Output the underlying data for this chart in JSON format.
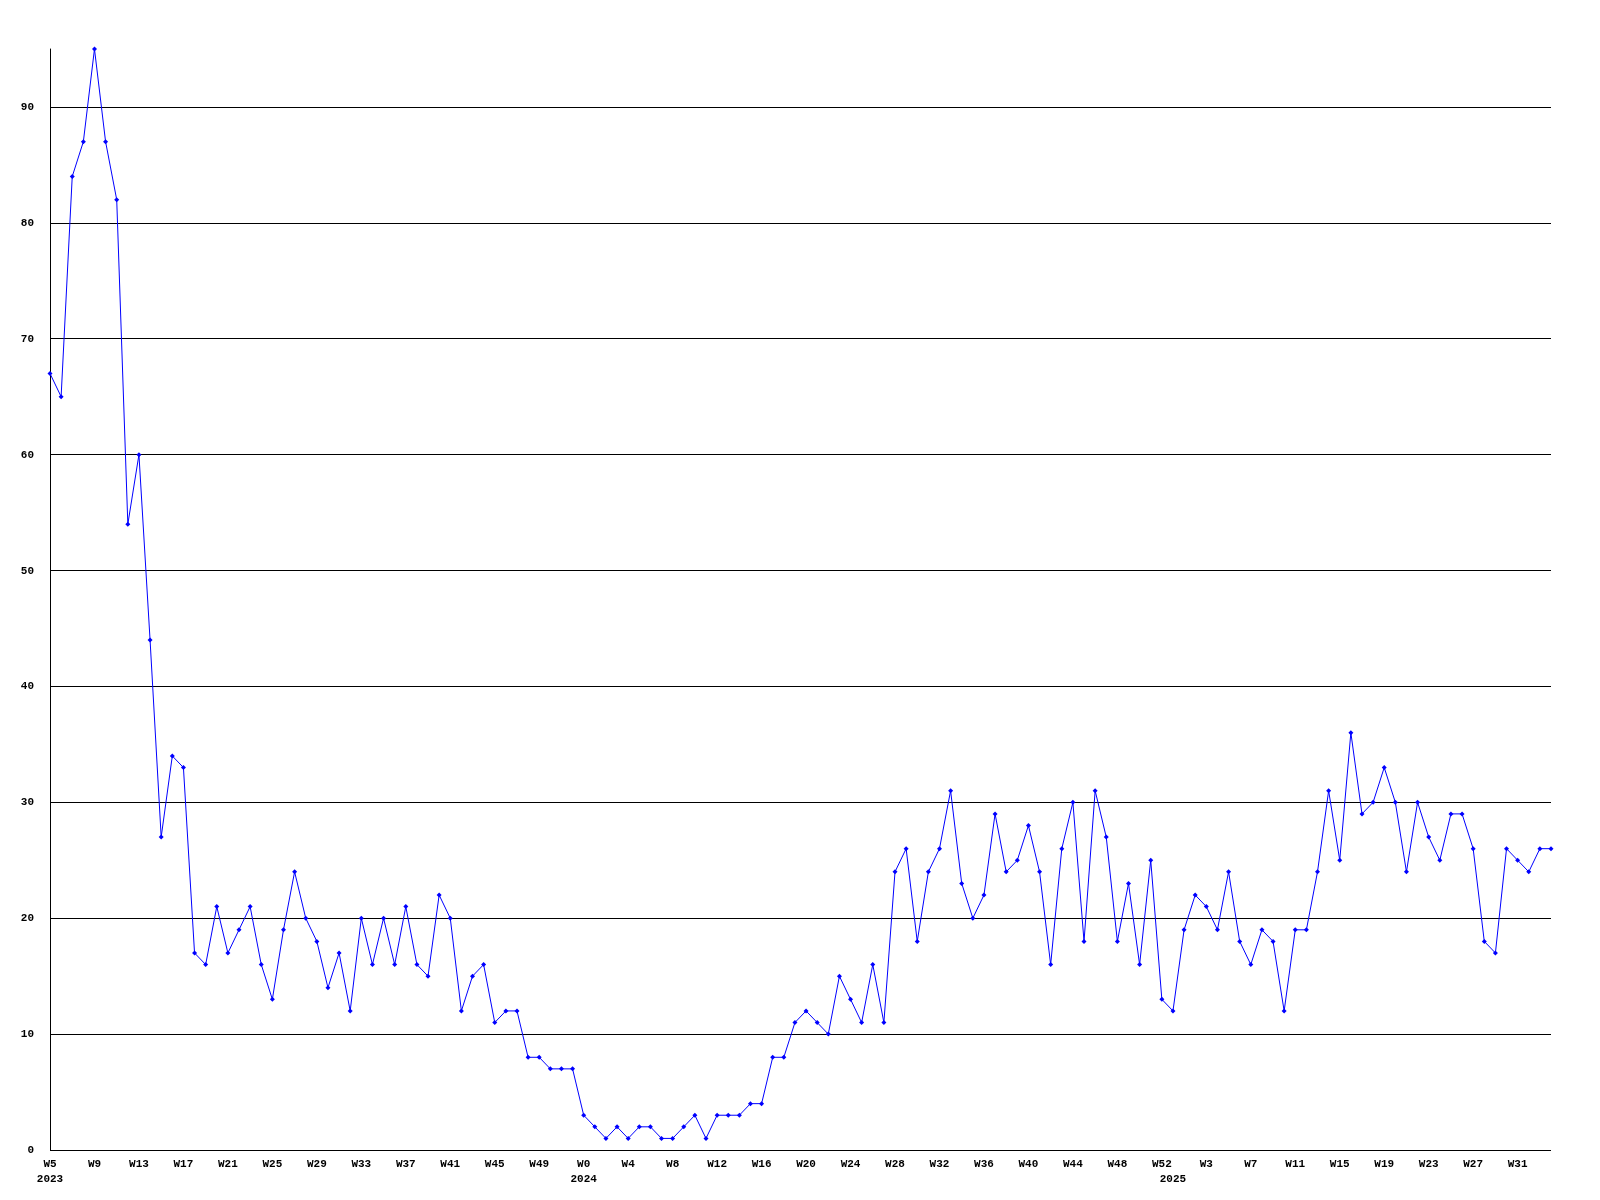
{
  "chart_data": {
    "type": "line",
    "categories": [
      "W5\n2023",
      null,
      null,
      null,
      "W9",
      null,
      null,
      null,
      "W13",
      null,
      null,
      null,
      "W17",
      null,
      null,
      null,
      "W21",
      null,
      null,
      null,
      "W25",
      null,
      null,
      null,
      "W29",
      null,
      null,
      null,
      "W33",
      null,
      null,
      null,
      "W37",
      null,
      null,
      null,
      "W41",
      null,
      null,
      null,
      "W45",
      null,
      null,
      null,
      "W49",
      null,
      null,
      null,
      "W0\n2024",
      null,
      null,
      null,
      "W4",
      null,
      null,
      null,
      "W8",
      null,
      null,
      null,
      "W12",
      null,
      null,
      null,
      "W16",
      null,
      null,
      null,
      "W20",
      null,
      null,
      null,
      "W24",
      null,
      null,
      null,
      "W28",
      null,
      null,
      null,
      "W32",
      null,
      null,
      null,
      "W36",
      null,
      null,
      null,
      "W40",
      null,
      null,
      null,
      "W44",
      null,
      null,
      null,
      "W48",
      null,
      null,
      null,
      "W52",
      "\n2025",
      null,
      null,
      "W3",
      null,
      null,
      null,
      "W7",
      null,
      null,
      null,
      "W11",
      null,
      null,
      null,
      "W15",
      null,
      null,
      null,
      "W19",
      null,
      null,
      null,
      "W23",
      null,
      null,
      null,
      "W27",
      null,
      null,
      null,
      "W31",
      null,
      null,
      null
    ],
    "series": [
      {
        "color": "#0000ff",
        "values": [
          67,
          65,
          84,
          87,
          95,
          87,
          82,
          54,
          60,
          44,
          27,
          34,
          33,
          17,
          16,
          21,
          17,
          19,
          21,
          16,
          13,
          19,
          24,
          20,
          18,
          14,
          17,
          12,
          20,
          16,
          20,
          16,
          21,
          16,
          15,
          22,
          20,
          12,
          15,
          16,
          11,
          12,
          12,
          8,
          8,
          7,
          7,
          7,
          3,
          2,
          1,
          2,
          1,
          2,
          2,
          1,
          1,
          2,
          3,
          1,
          3,
          3,
          3,
          4,
          4,
          8,
          8,
          11,
          12,
          11,
          10,
          15,
          13,
          11,
          16,
          11,
          24,
          26,
          18,
          24,
          26,
          31,
          23,
          20,
          22,
          29,
          24,
          25,
          28,
          24,
          16,
          26,
          30,
          18,
          31,
          27,
          18,
          23,
          16,
          25,
          13,
          12,
          19,
          22,
          21,
          19,
          24,
          18,
          16,
          19,
          18,
          12,
          19,
          19,
          24,
          31,
          25,
          36,
          29,
          30,
          33,
          30,
          24,
          30,
          27,
          25,
          29,
          29,
          26,
          18,
          17,
          26,
          25,
          24,
          26,
          26
        ]
      }
    ],
    "ylim": [
      0,
      95
    ],
    "yticks": [
      0,
      10,
      20,
      30,
      40,
      50,
      60,
      70,
      80,
      90
    ],
    "grid": "y",
    "marker": "diamond",
    "line_style": "solid"
  }
}
